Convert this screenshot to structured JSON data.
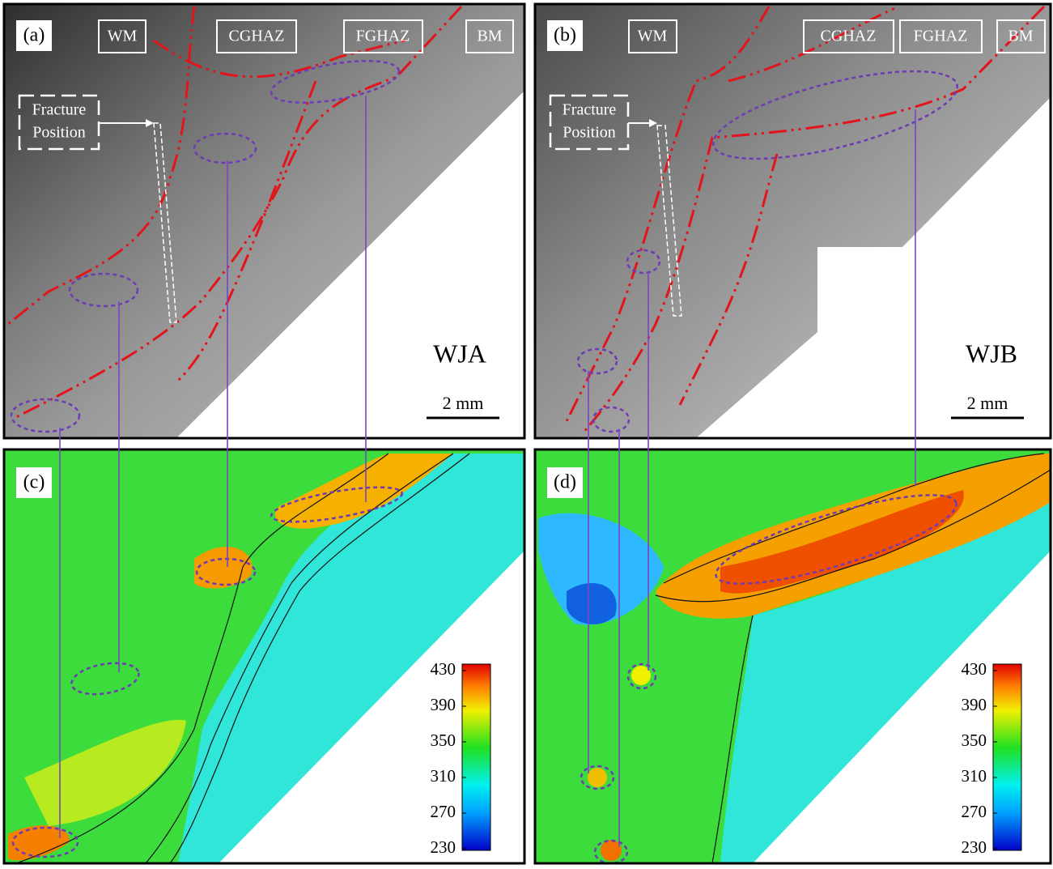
{
  "panels": [
    {
      "label": "(a)",
      "zones": [
        "WM",
        "CGHAZ",
        "FGHAZ",
        "BM"
      ],
      "fracture": [
        "Fracture",
        "Position"
      ],
      "sample": "WJA",
      "scale_bar": "2 mm"
    },
    {
      "label": "(b)",
      "zones": [
        "WM",
        "CGHAZ",
        "FGHAZ",
        "BM"
      ],
      "fracture": [
        "Fracture",
        "Position"
      ],
      "sample": "WJB",
      "scale_bar": "2 mm"
    },
    {
      "label": "(c)",
      "colorbar": {
        "lim": [
          230,
          430
        ],
        "ticks": [
          430,
          390,
          350,
          310,
          270,
          230
        ]
      }
    },
    {
      "label": "(d)",
      "colorbar": {
        "lim": [
          230,
          430
        ],
        "ticks": [
          430,
          390,
          350,
          310,
          270,
          230
        ]
      }
    }
  ]
}
